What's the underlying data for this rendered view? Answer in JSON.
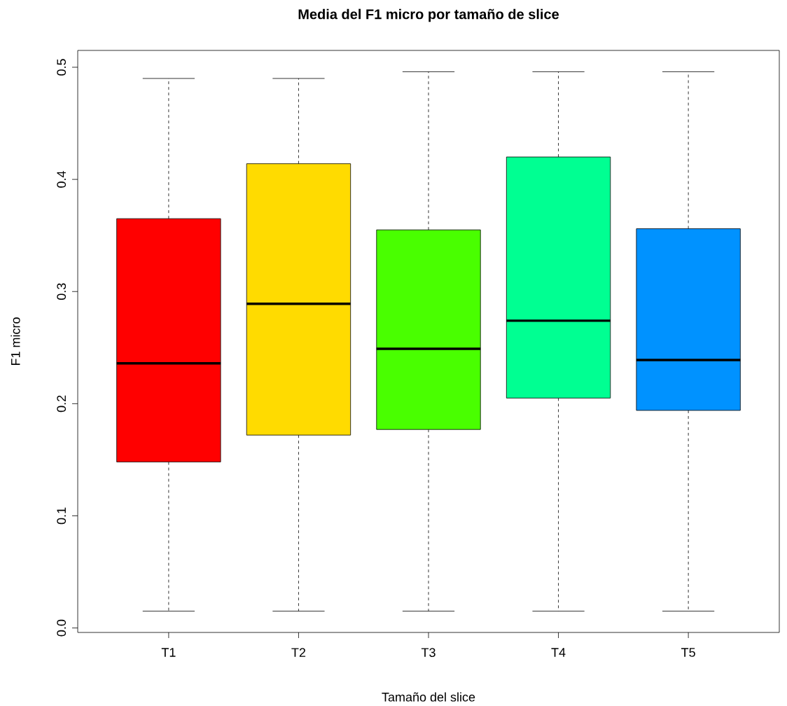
{
  "chart_data": {
    "type": "box",
    "title": "Media del F1 micro por tamaño de slice",
    "xlabel": "Tamaño del slice",
    "ylabel": "F1 micro",
    "categories": [
      "T1",
      "T2",
      "T3",
      "T4",
      "T5"
    ],
    "colors": [
      "#ff0000",
      "#ffdb00",
      "#49ff00",
      "#00ff92",
      "#0092ff"
    ],
    "boxes": [
      {
        "low": 0.015,
        "q1": 0.148,
        "median": 0.236,
        "q3": 0.365,
        "high": 0.49
      },
      {
        "low": 0.015,
        "q1": 0.172,
        "median": 0.289,
        "q3": 0.414,
        "high": 0.49
      },
      {
        "low": 0.015,
        "q1": 0.177,
        "median": 0.249,
        "q3": 0.355,
        "high": 0.496
      },
      {
        "low": 0.015,
        "q1": 0.205,
        "median": 0.274,
        "q3": 0.42,
        "high": 0.496
      },
      {
        "low": 0.015,
        "q1": 0.194,
        "median": 0.239,
        "q3": 0.356,
        "high": 0.496
      }
    ],
    "ylim": [
      -0.004,
      0.515
    ],
    "yticks": [
      {
        "value": 0,
        "label": "0.0"
      },
      0.1,
      0.2,
      0.3,
      0.4,
      0.5
    ]
  }
}
